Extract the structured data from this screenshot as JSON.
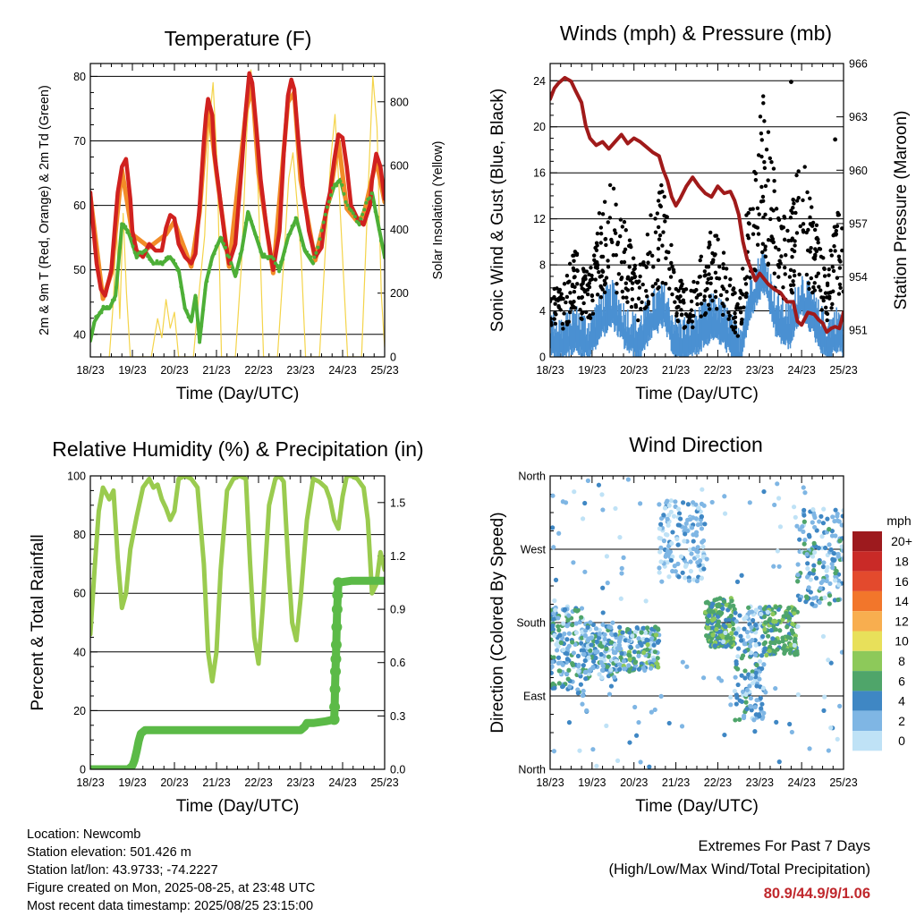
{
  "x_tick_labels": [
    "18/23",
    "19/23",
    "20/23",
    "21/23",
    "22/23",
    "23/23",
    "24/23",
    "25/23"
  ],
  "x_label": "Time (Day/UTC)",
  "charts": [
    {
      "id": "temperature",
      "type": "line",
      "title": "Temperature (F)",
      "ylabel_left": "2m & 9m T (Red, Orange) & 2m Td (Green)",
      "ylabel_right": "Solar Insolation (Yellow)",
      "ylim_left": [
        36.5,
        82
      ],
      "yticks_left": [
        40,
        50,
        60,
        70,
        80
      ],
      "ylim_right": [
        0,
        920
      ],
      "yticks_right": [
        0,
        200,
        400,
        600,
        800
      ],
      "series": [
        {
          "color": "#d0211f",
          "axis": "left",
          "x": [
            0,
            0.05,
            0.15,
            0.25,
            0.35,
            0.5,
            0.65,
            0.75,
            0.85,
            0.95,
            1.0,
            1.1,
            1.25,
            1.4,
            1.55,
            1.7,
            1.8,
            1.9,
            2.0,
            2.1,
            2.25,
            2.4,
            2.5,
            2.6,
            2.7,
            2.75,
            2.8,
            2.9,
            2.95,
            3.05,
            3.2,
            3.3,
            3.45,
            3.6,
            3.7,
            3.78,
            3.85,
            3.95,
            4.05,
            4.2,
            4.35,
            4.5,
            4.6,
            4.7,
            4.78,
            4.85,
            4.95,
            5.05,
            5.2,
            5.35,
            5.5,
            5.6,
            5.7,
            5.8,
            5.9,
            6.0,
            6.1,
            6.2,
            6.35,
            6.5,
            6.65,
            6.7,
            6.8,
            6.9,
            7.0
          ],
          "y": [
            62,
            58,
            51,
            47,
            46,
            50,
            62,
            66,
            67.2,
            61,
            56,
            53,
            52,
            54,
            53,
            53,
            56.5,
            58.5,
            58,
            54,
            52,
            51,
            52.5,
            60,
            70,
            74,
            76.5,
            74,
            68,
            63,
            55,
            51,
            54,
            66,
            75,
            80.5,
            79,
            72,
            64,
            56,
            50,
            56,
            68,
            77,
            79.5,
            78,
            70,
            63,
            56,
            52,
            53.5,
            59,
            62,
            67,
            71,
            70.5,
            66,
            60,
            58,
            57,
            60,
            64,
            68,
            66,
            61
          ]
        },
        {
          "color": "#f28c28",
          "axis": "left",
          "x": [
            0,
            0.3,
            0.5,
            0.75,
            1.0,
            1.4,
            1.8,
            2.0,
            2.4,
            2.6,
            2.8,
            3.0,
            3.3,
            3.7,
            3.85,
            4.0,
            4.35,
            4.7,
            4.85,
            5.0,
            5.35,
            5.7,
            5.9,
            6.1,
            6.35,
            6.5,
            6.8,
            7.0
          ],
          "y": [
            61.5,
            45.5,
            49.5,
            65.5,
            55.5,
            53.5,
            55.5,
            57.5,
            50.5,
            59,
            76,
            65,
            50.5,
            74.5,
            78.5,
            65,
            49.5,
            76,
            77.5,
            64,
            51.5,
            61.5,
            70,
            59.5,
            57.5,
            58.5,
            67,
            60.5
          ]
        },
        {
          "color": "#4daf37",
          "axis": "left",
          "x": [
            0,
            0.1,
            0.2,
            0.3,
            0.45,
            0.6,
            0.75,
            0.9,
            1.1,
            1.3,
            1.5,
            1.7,
            1.9,
            2.1,
            2.25,
            2.4,
            2.5,
            2.6,
            2.75,
            2.9,
            3.1,
            3.3,
            3.45,
            3.6,
            3.75,
            3.9,
            4.1,
            4.3,
            4.5,
            4.7,
            4.9,
            5.1,
            5.3,
            5.5,
            5.65,
            5.8,
            5.95,
            6.1,
            6.25,
            6.4,
            6.55,
            6.7,
            6.85,
            7.0
          ],
          "y": [
            39,
            42,
            43,
            44,
            44,
            46,
            57,
            56,
            52,
            53,
            51,
            51,
            52,
            50,
            44,
            42,
            46,
            39,
            48,
            52,
            55,
            52,
            49,
            53,
            59,
            56,
            52,
            52,
            50,
            55,
            58,
            53,
            51,
            56,
            60,
            63,
            64,
            60,
            59,
            57,
            60,
            62,
            57,
            52
          ]
        },
        {
          "color": "#f4d44a",
          "axis": "right",
          "x": [
            0.45,
            0.55,
            0.62,
            0.7,
            0.78,
            0.86,
            0.95,
            1.45,
            1.6,
            1.7,
            1.8,
            1.9,
            2.0,
            2.1,
            2.45,
            2.6,
            2.72,
            2.82,
            2.92,
            3.02,
            3.12,
            3.45,
            3.6,
            3.72,
            3.82,
            3.92,
            4.02,
            4.12,
            4.45,
            4.6,
            4.72,
            4.82,
            4.92,
            5.02,
            5.12,
            5.45,
            5.6,
            5.72,
            5.82,
            5.92,
            6.02,
            6.12,
            6.45,
            6.6,
            6.72,
            6.82,
            6.92,
            7.0
          ],
          "y": [
            0,
            180,
            420,
            120,
            450,
            200,
            0,
            0,
            120,
            60,
            180,
            90,
            140,
            0,
            0,
            220,
            380,
            720,
            860,
            600,
            0,
            0,
            300,
            700,
            900,
            760,
            420,
            0,
            0,
            300,
            560,
            640,
            480,
            300,
            0,
            0,
            360,
            620,
            760,
            520,
            260,
            0,
            0,
            500,
            880,
            720,
            200,
            30
          ]
        }
      ]
    },
    {
      "id": "winds",
      "type": "scatter+line",
      "title": "Winds (mph) & Pressure (mb)",
      "ylabel_left": "Sonic Wind & Gust (Blue, Black)",
      "ylabel_right": "Station Pressure (Maroon)",
      "ylim_left": [
        0,
        25.5
      ],
      "yticks_left": [
        0,
        4,
        8,
        12,
        16,
        20,
        24
      ],
      "ylim_right": [
        949.5,
        966
      ],
      "yticks_right": [
        951,
        954,
        957,
        960,
        963,
        966
      ],
      "series": [
        {
          "name_hidden": "wind",
          "color": "#4a90d2",
          "axis": "left",
          "x": [
            0,
            0.3,
            0.6,
            0.9,
            1.2,
            1.5,
            1.8,
            2.1,
            2.4,
            2.7,
            3.0,
            3.3,
            3.6,
            3.9,
            4.2,
            4.5,
            4.8,
            5.1,
            5.4,
            5.7,
            6.0,
            6.3,
            6.6,
            6.9,
            7.0
          ],
          "y": [
            2.5,
            2,
            3,
            2,
            4,
            5,
            3,
            2,
            4,
            5,
            2,
            2,
            3,
            4,
            3,
            1,
            6,
            8,
            4,
            3,
            6,
            4,
            2,
            3,
            2
          ]
        },
        {
          "name_hidden": "gust",
          "color": "#000000",
          "axis": "left",
          "x": [
            0,
            0.3,
            0.6,
            0.9,
            1.2,
            1.5,
            1.8,
            2.1,
            2.4,
            2.7,
            3.0,
            3.3,
            3.6,
            3.9,
            4.2,
            4.5,
            4.8,
            5.1,
            5.4,
            5.7,
            6.0,
            6.3,
            6.6,
            6.9,
            7.0
          ],
          "y": [
            5,
            4,
            7,
            5,
            9,
            11,
            8,
            5,
            9,
            11,
            5,
            4,
            6,
            8,
            6,
            3,
            12,
            16,
            10,
            8,
            13,
            9,
            5,
            10,
            8
          ]
        },
        {
          "color": "#a01a1a",
          "axis": "right",
          "x": [
            0,
            0.1,
            0.2,
            0.35,
            0.5,
            0.6,
            0.75,
            0.85,
            0.95,
            1.1,
            1.25,
            1.4,
            1.55,
            1.7,
            1.85,
            2.0,
            2.15,
            2.3,
            2.45,
            2.6,
            2.7,
            2.8,
            2.9,
            3.0,
            3.1,
            3.25,
            3.4,
            3.55,
            3.7,
            3.85,
            4.0,
            4.15,
            4.3,
            4.4,
            4.5,
            4.6,
            4.7,
            4.8,
            4.9,
            5.0,
            5.2,
            5.35,
            5.5,
            5.65,
            5.8,
            5.9,
            6.0,
            6.15,
            6.3,
            6.4,
            6.5,
            6.6,
            6.7,
            6.8,
            6.9,
            7.0
          ],
          "y": [
            964,
            964.6,
            964.9,
            965.2,
            965,
            964.5,
            963.8,
            962.5,
            961.8,
            961.4,
            961.6,
            961.2,
            961.6,
            962,
            961.5,
            961.8,
            961.6,
            961.3,
            961.0,
            960.8,
            960,
            959.4,
            958.5,
            958,
            958.4,
            959.1,
            959.6,
            959.1,
            958.7,
            958.5,
            959.1,
            958.7,
            958.8,
            958.3,
            957.5,
            956,
            955,
            954.4,
            953.8,
            954.2,
            953.6,
            953.3,
            953.1,
            952.6,
            952.6,
            951.5,
            951.3,
            952,
            951.9,
            951.6,
            951.4,
            950.9,
            951.1,
            951.2,
            951.1,
            952
          ]
        }
      ]
    },
    {
      "id": "humidity",
      "type": "line",
      "title": "Relative Humidity (%) & Precipitation (in)",
      "ylabel_left": "Percent & Total Rainfall",
      "ylim_left": [
        0,
        100
      ],
      "yticks_left": [
        0,
        20,
        40,
        60,
        80,
        100
      ],
      "ylim_right": [
        0,
        1.65
      ],
      "yticks_right": [
        0.0,
        0.3,
        0.6,
        0.9,
        1.2,
        1.5
      ],
      "series": [
        {
          "color": "#9acb4f",
          "axis": "left",
          "x": [
            0,
            0.1,
            0.2,
            0.3,
            0.45,
            0.55,
            0.65,
            0.75,
            0.85,
            0.95,
            1.1,
            1.25,
            1.4,
            1.5,
            1.6,
            1.7,
            1.8,
            1.9,
            2.0,
            2.1,
            2.25,
            2.4,
            2.55,
            2.7,
            2.8,
            2.9,
            3.0,
            3.1,
            3.25,
            3.4,
            3.55,
            3.7,
            3.8,
            3.9,
            4.0,
            4.1,
            4.25,
            4.4,
            4.5,
            4.6,
            4.7,
            4.8,
            4.9,
            5.0,
            5.15,
            5.3,
            5.45,
            5.6,
            5.7,
            5.8,
            5.9,
            6.0,
            6.1,
            6.2,
            6.35,
            6.5,
            6.6,
            6.7,
            6.8,
            6.9,
            7.0
          ],
          "y": [
            46,
            68,
            88,
            96,
            92,
            95,
            72,
            55,
            60,
            75,
            86,
            96,
            99,
            96,
            97,
            92,
            89,
            85,
            88,
            99,
            100,
            99,
            96,
            70,
            40,
            30,
            40,
            68,
            95,
            99,
            100,
            99,
            70,
            45,
            36,
            55,
            90,
            99,
            100,
            98,
            72,
            50,
            44,
            58,
            85,
            99,
            98,
            96,
            92,
            85,
            82,
            93,
            100,
            100,
            99,
            96,
            85,
            60,
            63,
            74,
            68
          ]
        },
        {
          "color": "#5bba47",
          "axis": "right",
          "x": [
            0,
            0.5,
            0.9,
            1.0,
            1.05,
            1.1,
            1.15,
            1.2,
            1.3,
            1.6,
            2.0,
            2.5,
            3.0,
            3.5,
            4.0,
            4.5,
            5.0,
            5.1,
            5.15,
            5.3,
            5.6,
            5.8,
            5.81,
            5.82,
            5.83,
            5.84,
            5.85,
            5.86,
            5.87,
            5.9,
            6.2,
            6.6,
            7.0
          ],
          "y": [
            0.0,
            0.0,
            0.0,
            0.02,
            0.05,
            0.1,
            0.16,
            0.2,
            0.22,
            0.22,
            0.22,
            0.22,
            0.22,
            0.22,
            0.22,
            0.22,
            0.22,
            0.24,
            0.26,
            0.26,
            0.27,
            0.28,
            0.35,
            0.45,
            0.55,
            0.62,
            0.7,
            0.8,
            0.9,
            1.05,
            1.06,
            1.06,
            1.06
          ]
        }
      ]
    },
    {
      "id": "direction",
      "type": "scatter",
      "title": "Wind Direction",
      "ylabel_left": "Direction (Colored By Speed)",
      "ylim_left": [
        0,
        360
      ],
      "ytick_labels": [
        "North",
        "East",
        "South",
        "West",
        "North"
      ],
      "yticks_left": [
        0,
        90,
        180,
        270,
        360
      ],
      "colorbar": {
        "unit": "mph",
        "labels": [
          "20+",
          "18",
          "16",
          "14",
          "12",
          "10",
          "8",
          "6",
          "4",
          "2",
          "0"
        ],
        "colors": [
          "#9d1a1e",
          "#c92a27",
          "#e34a2d",
          "#f2762b",
          "#f8ae4f",
          "#e8e05a",
          "#8dc95a",
          "#4fa56a",
          "#3f87c4",
          "#7fb6e4",
          "#bfe2f6"
        ]
      },
      "clusters": [
        {
          "x": [
            0,
            0.8
          ],
          "y": [
            90,
            200
          ],
          "speed": [
            0,
            6
          ]
        },
        {
          "x": [
            0.8,
            1.6
          ],
          "y": [
            110,
            180
          ],
          "speed": [
            0,
            6
          ]
        },
        {
          "x": [
            1.6,
            2.6
          ],
          "y": [
            120,
            175
          ],
          "speed": [
            0,
            8
          ]
        },
        {
          "x": [
            2.6,
            3.7
          ],
          "y": [
            230,
            330
          ],
          "speed": [
            0,
            4
          ]
        },
        {
          "x": [
            3.7,
            4.4
          ],
          "y": [
            150,
            210
          ],
          "speed": [
            4,
            8
          ]
        },
        {
          "x": [
            4.4,
            5.1
          ],
          "y": [
            60,
            200
          ],
          "speed": [
            0,
            6
          ]
        },
        {
          "x": [
            5.1,
            5.9
          ],
          "y": [
            140,
            200
          ],
          "speed": [
            4,
            8
          ]
        },
        {
          "x": [
            5.9,
            7.0
          ],
          "y": [
            200,
            320
          ],
          "speed": [
            0,
            6
          ]
        },
        {
          "x": [
            0,
            7.0
          ],
          "y": [
            0,
            360
          ],
          "speed": [
            0,
            4
          ]
        }
      ]
    }
  ],
  "footer": {
    "location": "Location: Newcomb",
    "elevation": "Station elevation: 501.426 m",
    "latlon": "Station lat/lon: 43.9733; -74.2227",
    "created": "Figure created on Mon, 2025-08-25, at 23:48 UTC",
    "recent": "Most recent data timestamp: 2025/08/25 23:15:00"
  },
  "extremes": {
    "heading": "Extremes For Past 7 Days",
    "subheading": "(High/Low/Max Wind/Total Precipitation)",
    "values": "80.9/44.9/9/1.06"
  }
}
